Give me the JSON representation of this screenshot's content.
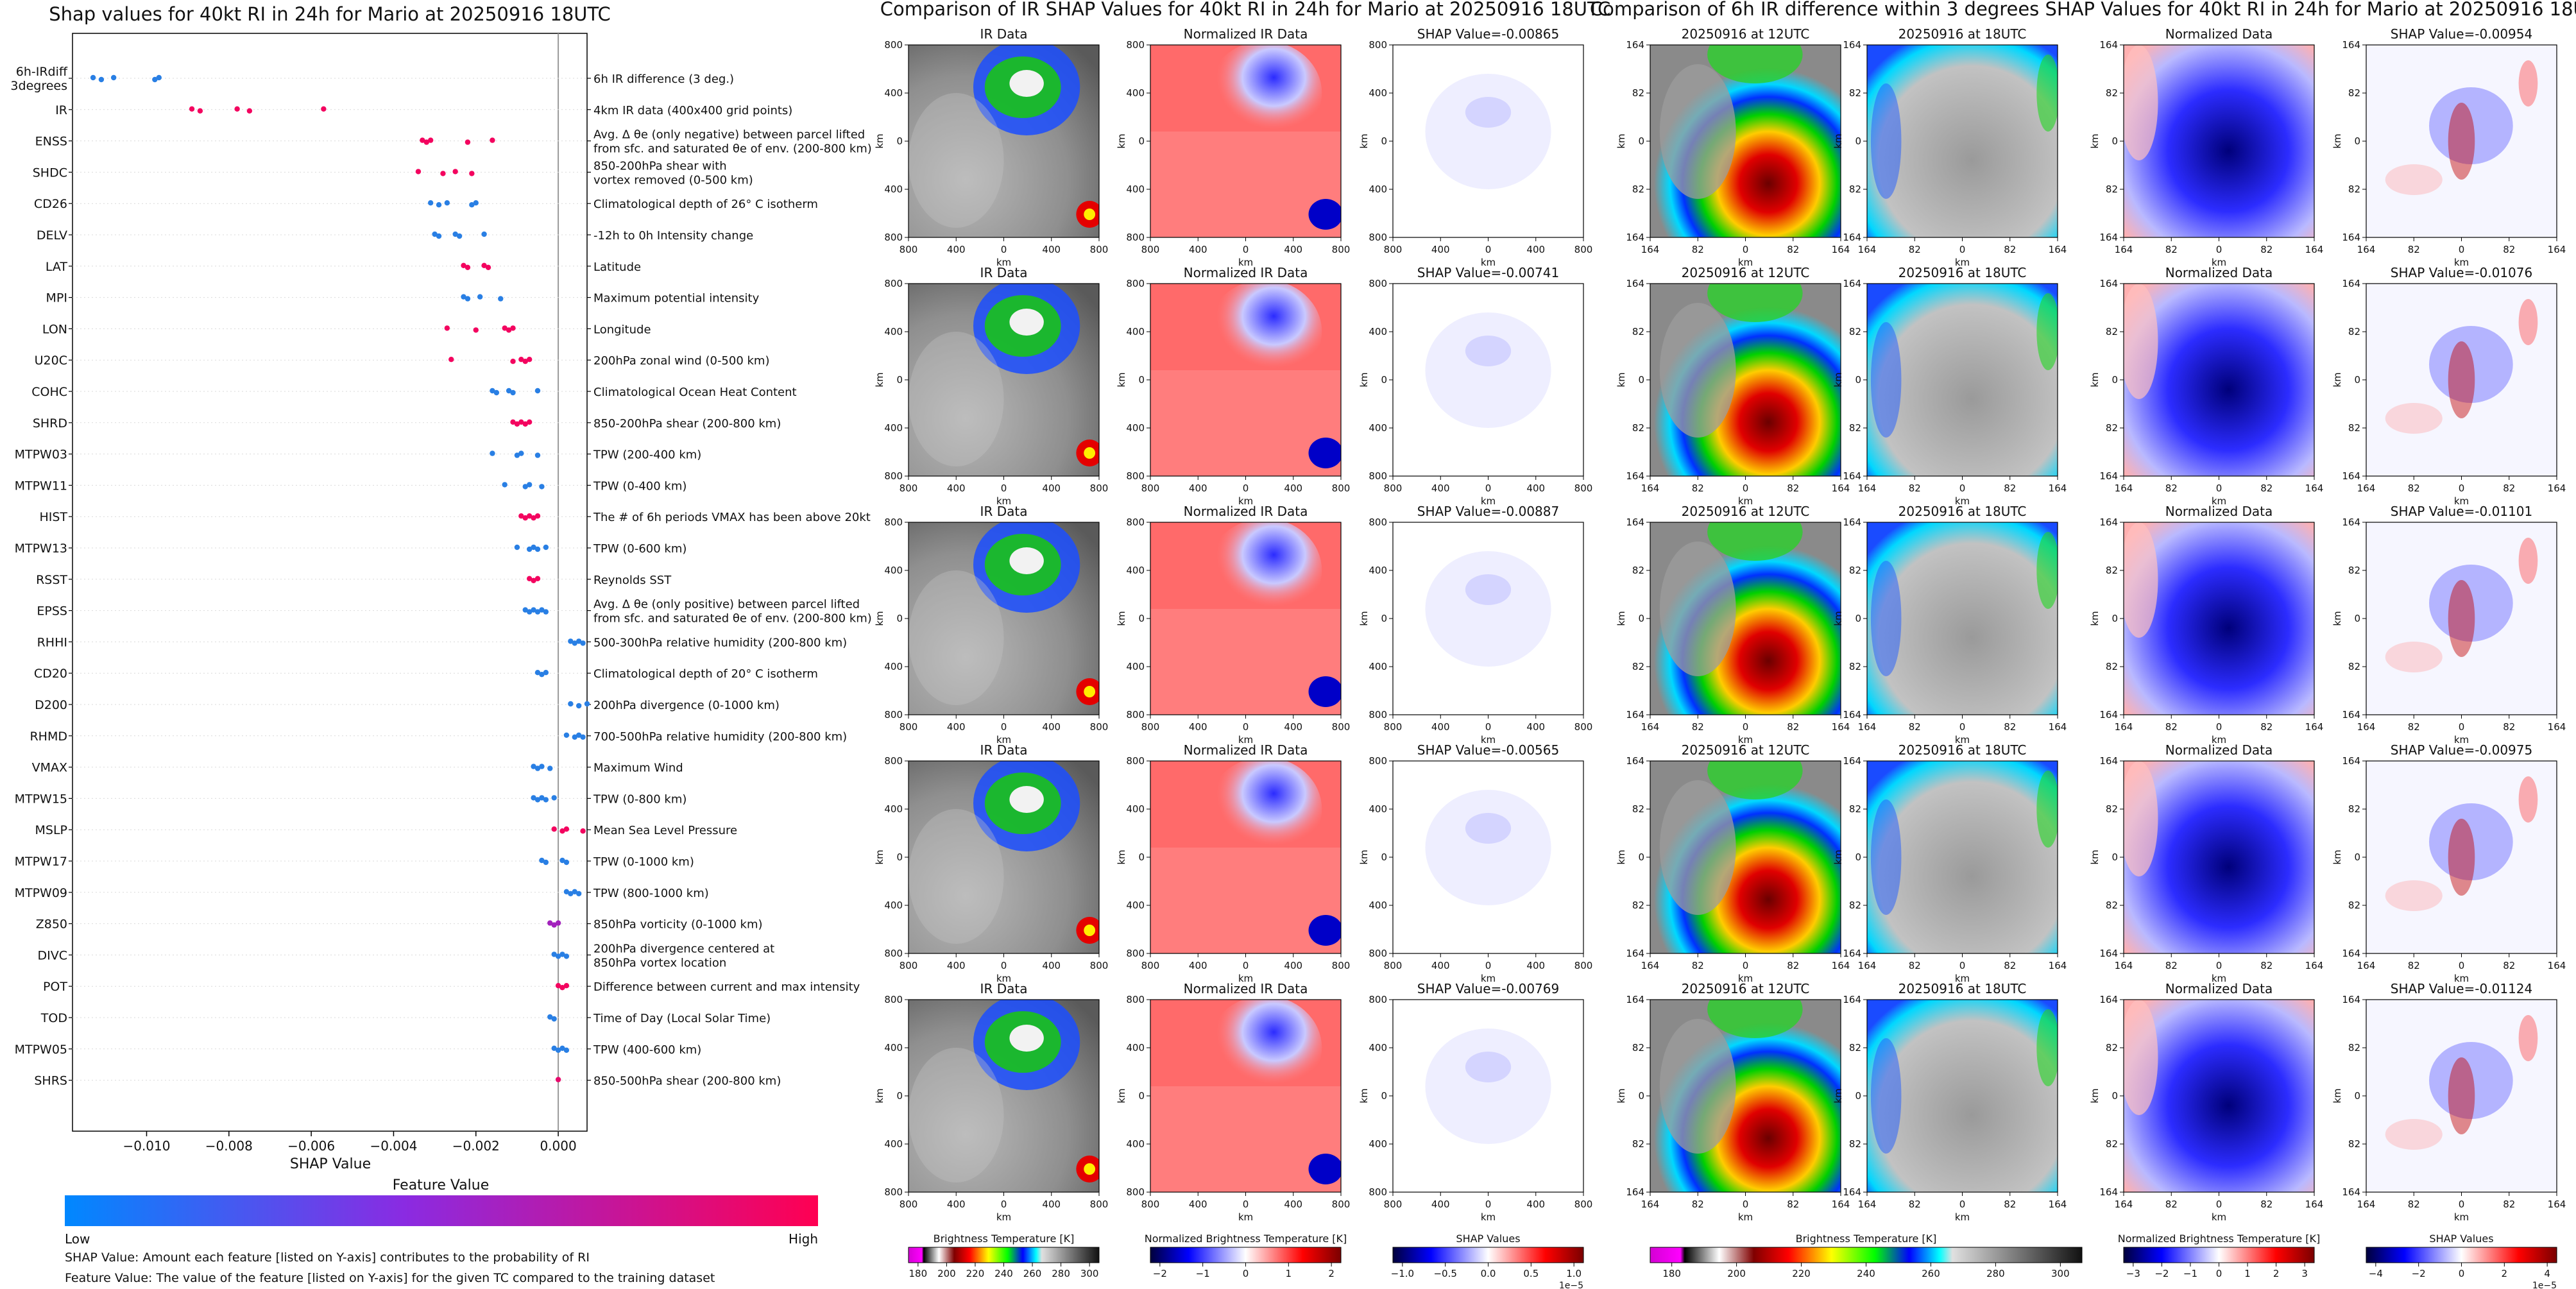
{
  "summary": {
    "title": "Shap values for 40kt RI in 24h for Mario at 20250916 18UTC",
    "xlabel": "SHAP Value",
    "xticks": [
      "−0.010",
      "−0.008",
      "−0.006",
      "−0.004",
      "−0.002",
      "0.000"
    ],
    "colorbar_title": "Feature Value",
    "colorbar_low": "Low",
    "colorbar_high": "High",
    "note1": "SHAP Value: Amount each feature [listed on Y-axis] contributes to the probability of RI",
    "note2": "Feature Value: The value of the feature [listed on Y-axis] for the given TC compared to the training dataset"
  },
  "colors": {
    "low": "#1e88e5",
    "mid": "#8b2bd6",
    "high": "#ff0052"
  },
  "chart_data": [
    {
      "type": "scatter",
      "title": "Shap values for 40kt RI in 24h for Mario at 20250916 18UTC",
      "xlabel": "SHAP Value",
      "xlim": [
        -0.0118,
        0.0007
      ],
      "features": [
        {
          "name": "6h-IRdiff\n3degrees",
          "desc": "6h IR difference (3 deg.)",
          "shap": [
            -0.0113,
            -0.0111,
            -0.0108,
            -0.0098,
            -0.0097
          ],
          "level": 0.05
        },
        {
          "name": "IR",
          "desc": "4km IR data (400x400 grid points)",
          "shap": [
            -0.0089,
            -0.0087,
            -0.0078,
            -0.0075,
            -0.0057
          ],
          "level": 0.95
        },
        {
          "name": "ENSS",
          "desc": "Avg. Δ θe (only negative) between parcel lifted\nfrom sfc. and saturated θe of env. (200-800 km)",
          "shap": [
            -0.0033,
            -0.0032,
            -0.0031,
            -0.0022,
            -0.0016
          ],
          "level": 0.95
        },
        {
          "name": "SHDC",
          "desc": "850-200hPa shear with\nvortex removed (0-500 km)",
          "shap": [
            -0.0034,
            -0.0028,
            -0.0025,
            -0.0021
          ],
          "level": 0.95
        },
        {
          "name": "CD26",
          "desc": "Climatological depth of 26° C isotherm",
          "shap": [
            -0.0031,
            -0.0029,
            -0.0027,
            -0.0021,
            -0.002
          ],
          "level": 0.05
        },
        {
          "name": "DELV",
          "desc": "-12h to 0h Intensity change",
          "shap": [
            -0.003,
            -0.0029,
            -0.0025,
            -0.0024,
            -0.0018
          ],
          "level": 0.05
        },
        {
          "name": "LAT",
          "desc": "Latitude",
          "shap": [
            -0.0023,
            -0.0022,
            -0.0018,
            -0.0017
          ],
          "level": 0.95
        },
        {
          "name": "MPI",
          "desc": "Maximum potential intensity",
          "shap": [
            -0.0023,
            -0.0022,
            -0.0019,
            -0.0014
          ],
          "level": 0.05
        },
        {
          "name": "LON",
          "desc": "Longitude",
          "shap": [
            -0.0027,
            -0.002,
            -0.0013,
            -0.0012,
            -0.0011
          ],
          "level": 0.95
        },
        {
          "name": "U20C",
          "desc": "200hPa zonal wind (0-500 km)",
          "shap": [
            -0.0026,
            -0.0011,
            -0.0009,
            -0.0008,
            -0.0007
          ],
          "level": 0.95
        },
        {
          "name": "COHC",
          "desc": "Climatological Ocean Heat Content",
          "shap": [
            -0.0016,
            -0.0015,
            -0.0012,
            -0.0011,
            -0.0005
          ],
          "level": 0.05
        },
        {
          "name": "SHRD",
          "desc": "850-200hPa shear (200-800 km)",
          "shap": [
            -0.0011,
            -0.001,
            -0.0009,
            -0.0008,
            -0.0007
          ],
          "level": 0.95
        },
        {
          "name": "MTPW03",
          "desc": "TPW (200-400 km)",
          "shap": [
            -0.0016,
            -0.001,
            -0.0009,
            -0.0005
          ],
          "level": 0.05
        },
        {
          "name": "MTPW11",
          "desc": "TPW (0-400 km)",
          "shap": [
            -0.0013,
            -0.0008,
            -0.0007,
            -0.0004
          ],
          "level": 0.05
        },
        {
          "name": "HIST",
          "desc": "The # of 6h periods VMAX has been above 20kt",
          "shap": [
            -0.0009,
            -0.0008,
            -0.0007,
            -0.0006,
            -0.0005
          ],
          "level": 0.95
        },
        {
          "name": "MTPW13",
          "desc": "TPW (0-600 km)",
          "shap": [
            -0.001,
            -0.0007,
            -0.0006,
            -0.0005,
            -0.0003
          ],
          "level": 0.05
        },
        {
          "name": "RSST",
          "desc": "Reynolds SST",
          "shap": [
            -0.0007,
            -0.0006,
            -0.0005
          ],
          "level": 0.95
        },
        {
          "name": "EPSS",
          "desc": "Avg. Δ θe (only positive) between parcel lifted\nfrom sfc. and saturated θe of env. (200-800 km)",
          "shap": [
            -0.0008,
            -0.0007,
            -0.0006,
            -0.0005,
            -0.0004,
            -0.0003
          ],
          "level": 0.05
        },
        {
          "name": "RHHI",
          "desc": "500-300hPa relative humidity (200-800 km)",
          "shap": [
            0.0003,
            0.0004,
            0.0005,
            0.0006
          ],
          "level": 0.05
        },
        {
          "name": "CD20",
          "desc": "Climatological depth of 20° C isotherm",
          "shap": [
            -0.0005,
            -0.0004,
            -0.0003
          ],
          "level": 0.05
        },
        {
          "name": "D200",
          "desc": "200hPa divergence (0-1000 km)",
          "shap": [
            0.0003,
            0.0005,
            0.0007
          ],
          "level": 0.05
        },
        {
          "name": "RHMD",
          "desc": "700-500hPa relative humidity (200-800 km)",
          "shap": [
            0.0002,
            0.0004,
            0.0005,
            0.0006
          ],
          "level": 0.05
        },
        {
          "name": "VMAX",
          "desc": "Maximum Wind",
          "shap": [
            -0.0006,
            -0.0005,
            -0.0004,
            -0.0002
          ],
          "level": 0.05
        },
        {
          "name": "MTPW15",
          "desc": "TPW (0-800 km)",
          "shap": [
            -0.0006,
            -0.0005,
            -0.0004,
            -0.0003,
            -0.0001
          ],
          "level": 0.05
        },
        {
          "name": "MSLP",
          "desc": "Mean Sea Level Pressure",
          "shap": [
            -0.0001,
            0.0001,
            0.0002,
            0.0006
          ],
          "level": 0.95
        },
        {
          "name": "MTPW17",
          "desc": "TPW (0-1000 km)",
          "shap": [
            -0.0004,
            -0.0003,
            0.0001,
            0.0002
          ],
          "level": 0.05
        },
        {
          "name": "MTPW09",
          "desc": "TPW (800-1000 km)",
          "shap": [
            0.0002,
            0.0003,
            0.0004,
            0.0005
          ],
          "level": 0.05
        },
        {
          "name": "Z850",
          "desc": "850hPa vorticity (0-1000 km)",
          "shap": [
            -0.0002,
            -0.0001,
            0.0
          ],
          "level": 0.6
        },
        {
          "name": "DIVC",
          "desc": "200hPa divergence centered at\n850hPa vortex location",
          "shap": [
            -0.0001,
            0.0,
            0.0001,
            0.0002
          ],
          "level": 0.05
        },
        {
          "name": "POT",
          "desc": "Difference between current and max intensity",
          "shap": [
            0.0,
            0.0001,
            0.0002
          ],
          "level": 0.95
        },
        {
          "name": "TOD",
          "desc": "Time of Day (Local Solar Time)",
          "shap": [
            -0.0002,
            -0.0001
          ],
          "level": 0.05
        },
        {
          "name": "MTPW05",
          "desc": "TPW (400-600 km)",
          "shap": [
            -0.0001,
            0.0,
            0.0001,
            0.0002
          ],
          "level": 0.05
        },
        {
          "name": "SHRS",
          "desc": "850-500hPa shear (200-800 km)",
          "shap": [
            0.0
          ],
          "level": 0.9
        }
      ]
    },
    {
      "type": "heatmap",
      "title": "Comparison of IR SHAP Values for 40kt RI in 24h for Mario at 20250916 18UTC",
      "column_titles": [
        "IR Data",
        "Normalized IR Data"
      ],
      "shap_titles": [
        "SHAP Value=-0.00865",
        "SHAP Value=-0.00741",
        "SHAP Value=-0.00887",
        "SHAP Value=-0.00565",
        "SHAP Value=-0.00769"
      ],
      "xticks": [
        "800",
        "400",
        "0",
        "400",
        "800"
      ],
      "yticks": [
        "800",
        "400",
        "0",
        "400",
        "800"
      ],
      "axis_label": "km",
      "colorbars": [
        {
          "label": "Brightness Temperature [K]",
          "ticks": [
            "180",
            "200",
            "220",
            "240",
            "260",
            "280",
            "300"
          ],
          "scale": ""
        },
        {
          "label": "Normalized Brightness Temperature [K]",
          "ticks": [
            "−2",
            "−1",
            "0",
            "1",
            "2"
          ],
          "scale": ""
        },
        {
          "label": "SHAP Values",
          "ticks": [
            "−1.0",
            "−0.5",
            "0.0",
            "0.5",
            "1.0"
          ],
          "scale": "1e−5"
        }
      ]
    },
    {
      "type": "heatmap",
      "title": "Comparison of 6h IR difference within 3 degrees SHAP Values for 40kt RI in 24h for Mario at 20250916 18UTC",
      "column_titles": [
        "20250916 at 12UTC",
        "20250916 at 18UTC",
        "Normalized Data"
      ],
      "shap_titles": [
        "SHAP Value=-0.00954",
        "SHAP Value=-0.01076",
        "SHAP Value=-0.01101",
        "SHAP Value=-0.00975",
        "SHAP Value=-0.01124"
      ],
      "xticks": [
        "164",
        "82",
        "0",
        "82",
        "164"
      ],
      "yticks": [
        "164",
        "82",
        "0",
        "82",
        "164"
      ],
      "axis_label": "km",
      "colorbars": [
        {
          "label": "Brightness Temperature [K]",
          "ticks": [
            "180",
            "200",
            "220",
            "240",
            "260",
            "280",
            "300"
          ],
          "scale": ""
        },
        {
          "label": "Normalized Brightness Temperature [K]",
          "ticks": [
            "−3",
            "−2",
            "−1",
            "0",
            "1",
            "2",
            "3"
          ],
          "scale": ""
        },
        {
          "label": "SHAP Values",
          "ticks": [
            "−4",
            "−2",
            "0",
            "2",
            "4"
          ],
          "scale": "1e−5"
        }
      ]
    }
  ]
}
